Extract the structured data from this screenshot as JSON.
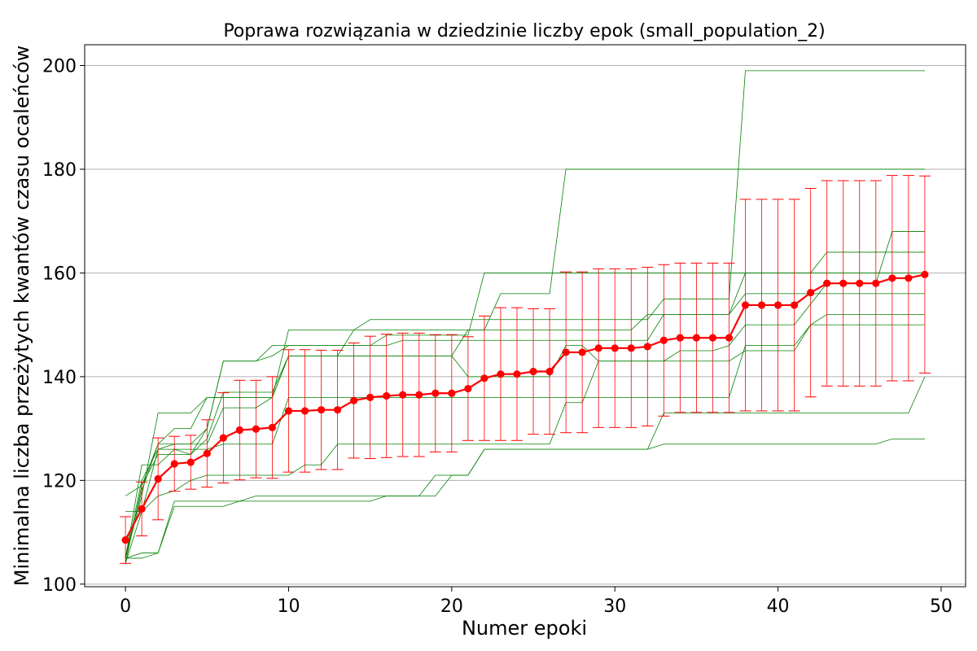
{
  "chart_data": {
    "type": "line",
    "title": "Poprawa rozwiązania w dziedzinie liczby epok (small_population_2)",
    "xlabel": "Numer epoki",
    "ylabel": "Minimalna liczba przeżytych kwantów czasu ocaleńców",
    "xlim": [
      -2.5,
      51.5
    ],
    "ylim": [
      99.5,
      204
    ],
    "x_ticks": [
      0,
      10,
      20,
      30,
      40,
      50
    ],
    "y_ticks": [
      100,
      120,
      140,
      160,
      180,
      200
    ],
    "grid": "horizontal",
    "colors": {
      "mean": "#ff0000",
      "errorbar": "#ff0000",
      "runs": "#008000",
      "grid": "#b0b0b0"
    },
    "epochs": [
      0,
      1,
      2,
      3,
      4,
      5,
      6,
      7,
      8,
      9,
      10,
      11,
      12,
      13,
      14,
      15,
      16,
      17,
      18,
      19,
      20,
      21,
      22,
      23,
      24,
      25,
      26,
      27,
      28,
      29,
      30,
      31,
      32,
      33,
      34,
      35,
      36,
      37,
      38,
      39,
      40,
      41,
      42,
      43,
      44,
      45,
      46,
      47,
      48,
      49
    ],
    "mean": [
      108.5,
      114.5,
      120.3,
      123.2,
      123.5,
      125.2,
      128.2,
      129.7,
      129.9,
      130.2,
      133.4,
      133.4,
      133.6,
      133.6,
      135.4,
      136.0,
      136.3,
      136.5,
      136.5,
      136.8,
      136.8,
      137.7,
      139.7,
      140.5,
      140.5,
      141.0,
      141.0,
      144.7,
      144.7,
      145.5,
      145.5,
      145.5,
      145.8,
      147.0,
      147.5,
      147.5,
      147.5,
      147.5,
      153.8,
      153.8,
      153.8,
      153.8,
      156.2,
      158.0,
      158.0,
      158.0,
      158.0,
      159.0,
      159.0,
      159.7
    ],
    "error": [
      4.5,
      5.2,
      7.9,
      5.3,
      5.2,
      6.5,
      8.7,
      9.6,
      9.4,
      9.8,
      11.8,
      11.8,
      11.5,
      11.5,
      11.1,
      11.8,
      11.9,
      11.9,
      11.9,
      11.3,
      11.3,
      10.0,
      12.0,
      12.8,
      12.8,
      12.1,
      12.1,
      15.5,
      15.5,
      15.3,
      15.3,
      15.3,
      15.3,
      14.6,
      14.4,
      14.4,
      14.4,
      14.4,
      20.4,
      20.4,
      20.4,
      20.4,
      20.1,
      19.8,
      19.8,
      19.8,
      19.8,
      19.8,
      19.8,
      19.0
    ],
    "runs": [
      {
        "points": [
          [
            0,
            105
          ],
          [
            1,
            105
          ],
          [
            2,
            106
          ],
          [
            3,
            115
          ],
          [
            6,
            115
          ],
          [
            7,
            116
          ],
          [
            9,
            116
          ],
          [
            15,
            116
          ],
          [
            16,
            117
          ],
          [
            19,
            117
          ],
          [
            20,
            121
          ],
          [
            21,
            121
          ],
          [
            22,
            126
          ],
          [
            26,
            126
          ],
          [
            27,
            126
          ],
          [
            32,
            126
          ],
          [
            33,
            127
          ],
          [
            46,
            127
          ],
          [
            47,
            128
          ],
          [
            49,
            128
          ]
        ]
      },
      {
        "points": [
          [
            0,
            105
          ],
          [
            1,
            106
          ],
          [
            2,
            106
          ],
          [
            3,
            116
          ],
          [
            7,
            116
          ],
          [
            8,
            117
          ],
          [
            15,
            117
          ],
          [
            18,
            117
          ],
          [
            19,
            121
          ],
          [
            21,
            121
          ],
          [
            22,
            126
          ],
          [
            26,
            126
          ],
          [
            27,
            126
          ],
          [
            32,
            126
          ],
          [
            33,
            133
          ],
          [
            48,
            133
          ],
          [
            49,
            140
          ]
        ]
      },
      {
        "points": [
          [
            0,
            104
          ],
          [
            1,
            114
          ],
          [
            2,
            117
          ],
          [
            3,
            118
          ],
          [
            4,
            120
          ],
          [
            5,
            121
          ],
          [
            7,
            121
          ],
          [
            8,
            121
          ],
          [
            10,
            121
          ],
          [
            11,
            123
          ],
          [
            12,
            123
          ],
          [
            13,
            127
          ],
          [
            26,
            127
          ],
          [
            27,
            135
          ],
          [
            28,
            135
          ],
          [
            29,
            143
          ],
          [
            37,
            143
          ],
          [
            38,
            145
          ],
          [
            41,
            145
          ],
          [
            42,
            150
          ],
          [
            43,
            152
          ],
          [
            49,
            152
          ]
        ]
      },
      {
        "points": [
          [
            0,
            105
          ],
          [
            1,
            123
          ],
          [
            2,
            123
          ],
          [
            3,
            126
          ],
          [
            5,
            126
          ],
          [
            6,
            127
          ],
          [
            9,
            127
          ],
          [
            10,
            136
          ],
          [
            14,
            136
          ],
          [
            15,
            136
          ],
          [
            37,
            136
          ],
          [
            38,
            146
          ],
          [
            41,
            146
          ],
          [
            42,
            150
          ],
          [
            49,
            150
          ]
        ]
      },
      {
        "points": [
          [
            0,
            114
          ],
          [
            1,
            114
          ],
          [
            2,
            126
          ],
          [
            3,
            127
          ],
          [
            5,
            127
          ],
          [
            6,
            134
          ],
          [
            8,
            134
          ],
          [
            9,
            136
          ],
          [
            10,
            144
          ],
          [
            13,
            144
          ],
          [
            14,
            149
          ],
          [
            22,
            149
          ],
          [
            23,
            156
          ],
          [
            26,
            156
          ],
          [
            27,
            180
          ],
          [
            49,
            180
          ]
        ]
      },
      {
        "points": [
          [
            0,
            117
          ],
          [
            1,
            119
          ],
          [
            2,
            127
          ],
          [
            3,
            127
          ],
          [
            4,
            127
          ],
          [
            5,
            130
          ],
          [
            6,
            143
          ],
          [
            8,
            143
          ],
          [
            9,
            144
          ],
          [
            10,
            146
          ],
          [
            16,
            146
          ],
          [
            17,
            147
          ],
          [
            32,
            147
          ],
          [
            33,
            152
          ],
          [
            37,
            152
          ],
          [
            38,
            156
          ],
          [
            42,
            156
          ],
          [
            43,
            156
          ],
          [
            49,
            156
          ]
        ]
      },
      {
        "points": [
          [
            0,
            105
          ],
          [
            1,
            118
          ],
          [
            2,
            127
          ],
          [
            3,
            130
          ],
          [
            4,
            130
          ],
          [
            5,
            136
          ],
          [
            6,
            136
          ],
          [
            9,
            136
          ],
          [
            10,
            149
          ],
          [
            14,
            149
          ],
          [
            15,
            151
          ],
          [
            32,
            151
          ],
          [
            33,
            155
          ],
          [
            37,
            155
          ],
          [
            38,
            199
          ],
          [
            49,
            199
          ]
        ]
      },
      {
        "points": [
          [
            0,
            104
          ],
          [
            1,
            119
          ],
          [
            2,
            125
          ],
          [
            3,
            125
          ],
          [
            4,
            125
          ],
          [
            5,
            130
          ],
          [
            6,
            143
          ],
          [
            8,
            143
          ],
          [
            9,
            146
          ],
          [
            10,
            146
          ],
          [
            15,
            146
          ],
          [
            16,
            148
          ],
          [
            21,
            148
          ],
          [
            22,
            160
          ],
          [
            42,
            160
          ],
          [
            43,
            164
          ],
          [
            49,
            164
          ]
        ]
      },
      {
        "points": [
          [
            0,
            105
          ],
          [
            1,
            117
          ],
          [
            2,
            133
          ],
          [
            4,
            133
          ],
          [
            5,
            136
          ],
          [
            6,
            136
          ],
          [
            9,
            136
          ],
          [
            10,
            144
          ],
          [
            20,
            144
          ],
          [
            21,
            140
          ],
          [
            26,
            140
          ],
          [
            27,
            146
          ],
          [
            28,
            146
          ],
          [
            29,
            143
          ],
          [
            33,
            143
          ],
          [
            34,
            145
          ],
          [
            36,
            145
          ],
          [
            37,
            146
          ],
          [
            38,
            150
          ],
          [
            41,
            150
          ],
          [
            42,
            154
          ],
          [
            43,
            158
          ],
          [
            46,
            158
          ],
          [
            47,
            168
          ],
          [
            49,
            168
          ]
        ]
      },
      {
        "points": [
          [
            0,
            105
          ],
          [
            1,
            120
          ],
          [
            2,
            126
          ],
          [
            3,
            126
          ],
          [
            4,
            125
          ],
          [
            5,
            128
          ],
          [
            6,
            137
          ],
          [
            8,
            137
          ],
          [
            9,
            137
          ],
          [
            10,
            144
          ],
          [
            20,
            144
          ],
          [
            21,
            149
          ],
          [
            29,
            149
          ],
          [
            30,
            149
          ],
          [
            31,
            149
          ],
          [
            32,
            152
          ],
          [
            33,
            152
          ],
          [
            37,
            152
          ],
          [
            38,
            160
          ],
          [
            42,
            160
          ],
          [
            43,
            160
          ],
          [
            49,
            160
          ]
        ]
      }
    ]
  }
}
